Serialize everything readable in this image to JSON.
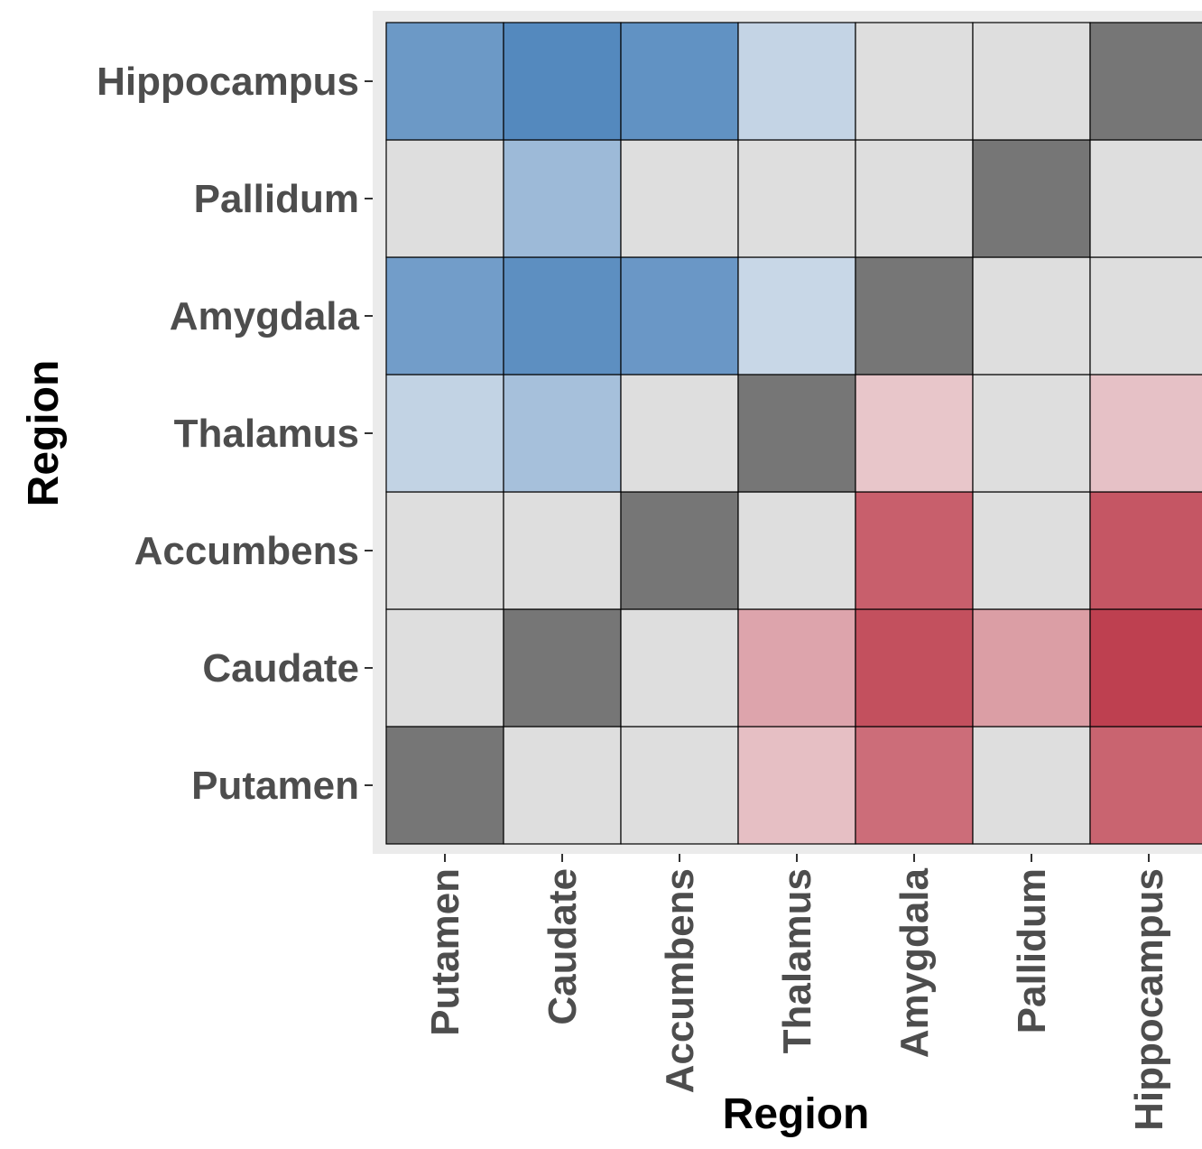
{
  "chart_data": {
    "type": "heatmap",
    "xlabel": "Region",
    "ylabel": "Region",
    "x_categories": [
      "Putamen",
      "Caudate",
      "Accumbens",
      "Thalamus",
      "Amygdala",
      "Pallidum",
      "Hippocampus"
    ],
    "y_categories": [
      "Putamen",
      "Caudate",
      "Accumbens",
      "Thalamus",
      "Amygdala",
      "Pallidum",
      "Hippocampus"
    ],
    "legend": "none",
    "grid": false,
    "diagonal_color": "#767676",
    "missing_color": "#dedede",
    "color_scale": {
      "low": "#2166ac",
      "mid": "#f7f7f7",
      "high": "#b2182b",
      "limits": [
        -1,
        1
      ]
    },
    "cells": [
      {
        "y": "Putamen",
        "values": [
          null,
          null,
          null,
          0.25,
          0.62,
          null,
          0.66
        ]
      },
      {
        "y": "Caudate",
        "values": [
          null,
          null,
          null,
          0.37,
          0.75,
          0.4,
          0.82
        ]
      },
      {
        "y": "Accumbens",
        "values": [
          null,
          null,
          null,
          null,
          0.68,
          null,
          0.72
        ]
      },
      {
        "y": "Thalamus",
        "values": [
          -0.25,
          -0.38,
          null,
          null,
          0.22,
          null,
          0.24
        ]
      },
      {
        "y": "Amygdala",
        "values": [
          -0.62,
          -0.72,
          -0.66,
          -0.22,
          null,
          null,
          null
        ]
      },
      {
        "y": "Pallidum",
        "values": [
          null,
          -0.42,
          null,
          null,
          null,
          null,
          null
        ]
      },
      {
        "y": "Hippocampus",
        "values": [
          -0.65,
          -0.76,
          -0.7,
          -0.24,
          null,
          null,
          null
        ]
      }
    ]
  }
}
